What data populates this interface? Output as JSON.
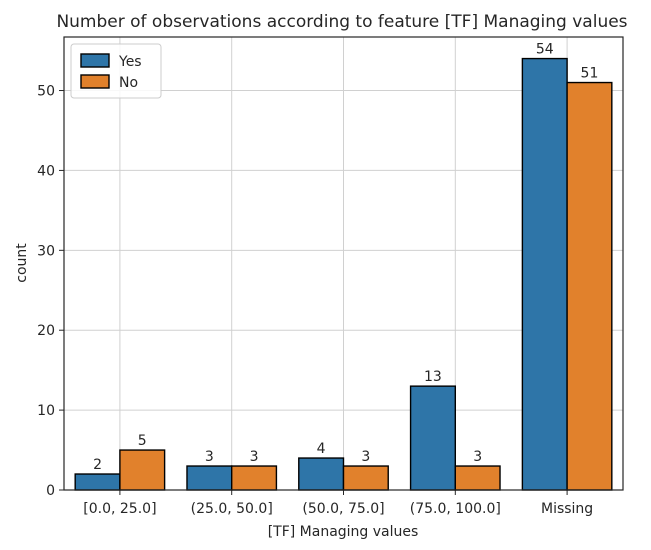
{
  "chart_data": {
    "type": "bar",
    "title": "Number of observations according to feature [TF] Managing values",
    "xlabel": "[TF] Managing values",
    "ylabel": "count",
    "categories": [
      "[0.0, 25.0]",
      "(25.0, 50.0]",
      "(50.0, 75.0]",
      "(75.0, 100.0]",
      "Missing"
    ],
    "series": [
      {
        "name": "Yes",
        "values": [
          2,
          3,
          4,
          13,
          54
        ],
        "color": "#2e75a8"
      },
      {
        "name": "No",
        "values": [
          5,
          3,
          3,
          3,
          51
        ],
        "color": "#e1812c"
      }
    ],
    "ylim": [
      0,
      56.7
    ],
    "yticks": [
      0,
      10,
      20,
      30,
      40,
      50
    ],
    "grid": true,
    "legend": "top-left",
    "data_labels": true
  }
}
